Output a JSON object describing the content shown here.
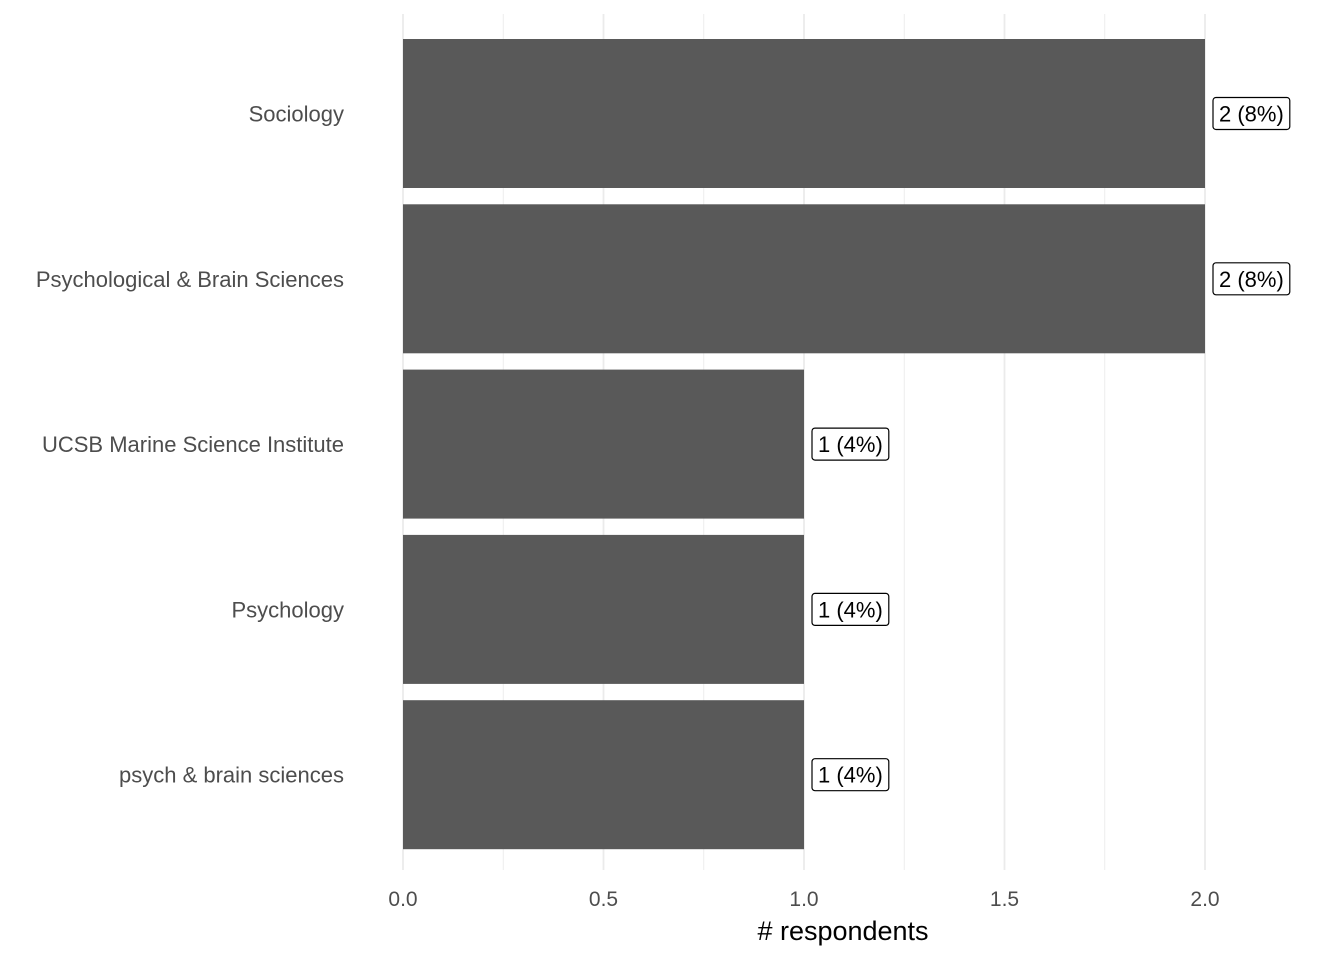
{
  "chart_data": {
    "type": "bar",
    "orientation": "horizontal",
    "categories": [
      "Sociology",
      "Psychological & Brain Sciences",
      "UCSB Marine Science Institute",
      "Psychology",
      "psych & brain sciences"
    ],
    "values": [
      2,
      2,
      1,
      1,
      1
    ],
    "data_labels": [
      "2 (8%)",
      "2 (8%)",
      "1 (4%)",
      "1 (4%)",
      "1 (4%)"
    ],
    "xlabel": "# respondents",
    "ylabel": "",
    "xlim": [
      0,
      2
    ],
    "x_ticks": [
      0,
      0.5,
      1,
      1.5,
      2
    ],
    "x_tick_labels": [
      "0.0",
      "0.5",
      "1.0",
      "1.5",
      "2.0"
    ],
    "grid": "vertical",
    "legend": "none",
    "colors": {
      "bar": "#595959",
      "grid": "#ebebeb",
      "label_text": "#4d4d4d"
    }
  }
}
